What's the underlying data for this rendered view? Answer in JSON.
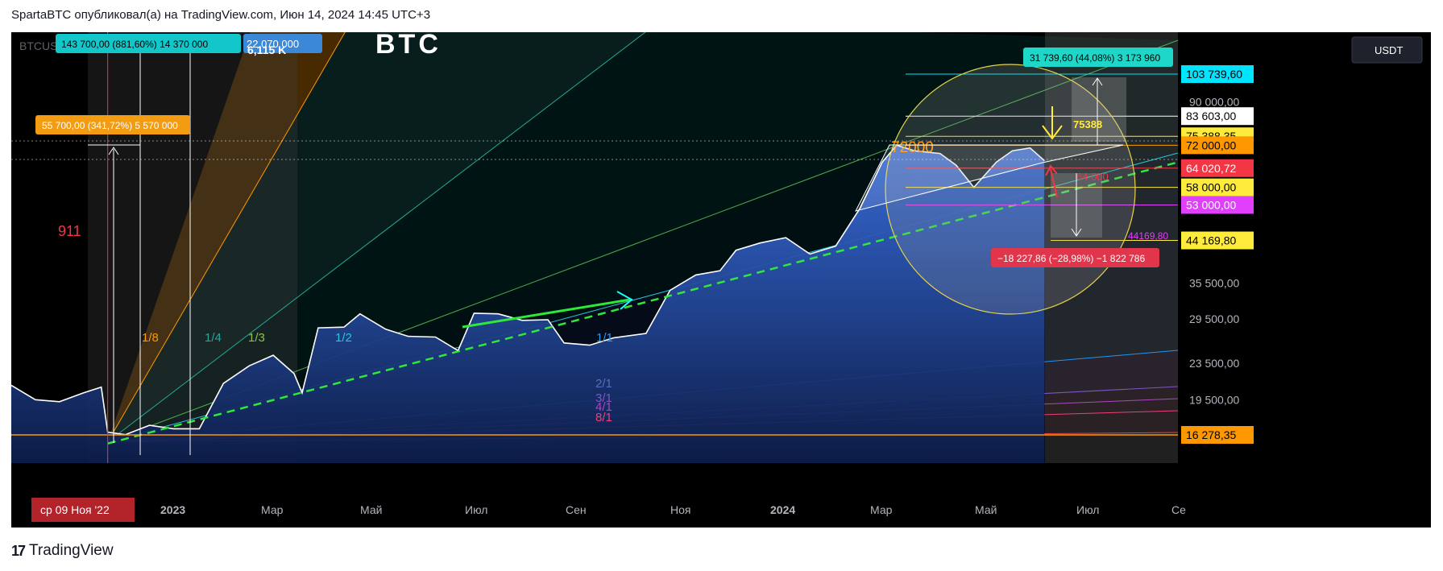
{
  "header": {
    "text": "SpartaBTC опубликовал(а) на TradingView.com, Июн 14, 2024 14:45 UTC+3"
  },
  "footer": {
    "brand": "TradingView"
  },
  "symbol": {
    "text": "BTCUSDT SPOT · 1Д · BYBIT · Объем",
    "volume": "6,115 K",
    "logo": "BTC"
  },
  "currency": "USDT",
  "chart_data": {
    "type": "area",
    "title": "",
    "ylim": [
      15000,
      115000
    ],
    "log_scale": true,
    "x_tick_labels": [
      "2023",
      "Мар",
      "Май",
      "Июл",
      "Сен",
      "Ноя",
      "2024",
      "Мар",
      "Май",
      "Июл",
      "Се"
    ],
    "x_highlight_label": "ср 09 Ноя '22",
    "price_series": {
      "name": "BTCUSDT",
      "x": [
        "2022-09-10",
        "2022-09-25",
        "2022-10-10",
        "2022-10-25",
        "2022-11-05",
        "2022-11-09",
        "2022-11-20",
        "2022-12-05",
        "2022-12-20",
        "2023-01-05",
        "2023-01-20",
        "2023-02-05",
        "2023-02-20",
        "2023-03-05",
        "2023-03-10",
        "2023-03-20",
        "2023-04-05",
        "2023-04-15",
        "2023-05-01",
        "2023-05-15",
        "2023-06-01",
        "2023-06-15",
        "2023-06-25",
        "2023-07-10",
        "2023-07-25",
        "2023-08-10",
        "2023-08-20",
        "2023-09-05",
        "2023-09-20",
        "2023-10-10",
        "2023-10-25",
        "2023-11-10",
        "2023-11-25",
        "2023-12-05",
        "2023-12-20",
        "2024-01-05",
        "2024-01-20",
        "2024-02-05",
        "2024-02-20",
        "2024-03-05",
        "2024-03-14",
        "2024-03-25",
        "2024-04-10",
        "2024-04-20",
        "2024-05-01",
        "2024-05-15",
        "2024-05-25",
        "2024-06-05",
        "2024-06-14"
      ],
      "y": [
        21000,
        19500,
        19300,
        20200,
        20800,
        16500,
        16300,
        17100,
        16800,
        16800,
        21200,
        23200,
        24500,
        22300,
        20200,
        28200,
        28300,
        30300,
        28000,
        27000,
        26900,
        25100,
        30400,
        30300,
        29300,
        29400,
        26100,
        25800,
        26800,
        27400,
        34200,
        37000,
        37800,
        42000,
        43600,
        44800,
        41200,
        42900,
        52000,
        66000,
        72000,
        70000,
        69000,
        65000,
        58000,
        66000,
        70000,
        71000,
        66500
      ]
    },
    "horizontal_levels": [
      {
        "label": "103 739,60",
        "value": 103739.6,
        "color": "#00e5ff"
      },
      {
        "label": "83 603,00",
        "value": 83603,
        "color": "#ffffff"
      },
      {
        "label": "75 388,35",
        "value": 75388.35,
        "color": "#ffeb3b"
      },
      {
        "label": "72 000,00",
        "value": 72000,
        "color": "#ff9800"
      },
      {
        "label": "64 020,72",
        "value": 64020.72,
        "color": "#f23645"
      },
      {
        "label": "58 000,00",
        "value": 58000,
        "color": "#ffeb3b"
      },
      {
        "label": "53 000,00",
        "value": 53000,
        "color": "#e040fb"
      },
      {
        "label": "44 169,80",
        "value": 44169.8,
        "color": "#ffeb3b"
      },
      {
        "label": "16 278,35",
        "value": 16278.35,
        "color": "#ff9800"
      }
    ],
    "axis_ticks": [
      {
        "label": "35 500,00",
        "value": 35500
      },
      {
        "label": "29 500,00",
        "value": 29500
      },
      {
        "label": "23 500,00",
        "value": 23500
      },
      {
        "label": "19 500,00",
        "value": 19500
      },
      {
        "label": "90 000,00",
        "value": 90000
      }
    ],
    "fan_labels": [
      "1/8",
      "1/4",
      "1/3",
      "1/2",
      "1/1",
      "2/1",
      "3/1",
      "4/1",
      "8/1"
    ],
    "annotations": {
      "left_number": "911",
      "box_top": "143 700,00 (881,60%) 14 370 000",
      "box_top_right": "22 070 000",
      "box_orange": "55 700,00 (341,72%) 5 570 000",
      "box_teal": "31 739,60 (44,08%) 3 173 960",
      "box_red": "−18 227,86 (−28,98%) −1 822 786",
      "label_72000": "72000",
      "label_75388": "75388",
      "label_64000": "64 000",
      "label_44169": "44169,80"
    },
    "colors": {
      "area_top": "#2a5cc4",
      "line": "#ffffff",
      "trend": "#2ee83a",
      "level_orange": "#ff9800",
      "level_red": "#f23645",
      "level_yellow": "#ffeb3b"
    }
  }
}
